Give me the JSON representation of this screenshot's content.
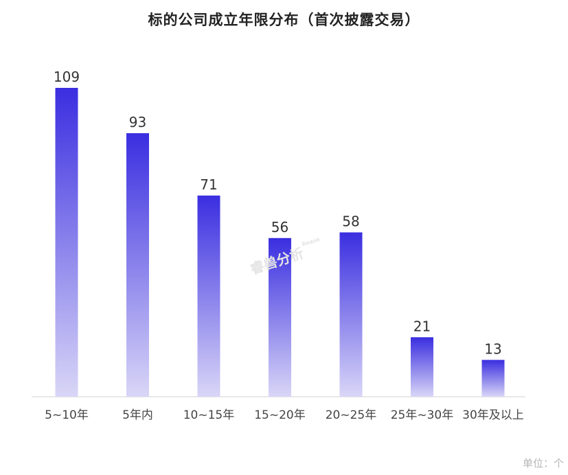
{
  "chart_data": {
    "type": "bar",
    "title": "标的公司成立年限分布（首次披露交易）",
    "unit": "单位：个",
    "categories": [
      "5~10年",
      "5年内",
      "10~15年",
      "15~20年",
      "20~25年",
      "25年~30年",
      "30年及以上"
    ],
    "values": [
      109,
      93,
      71,
      56,
      58,
      21,
      13
    ],
    "ylim": [
      0,
      109
    ],
    "grid": false,
    "legend": "none",
    "bar_color_top": "#3a2ee0",
    "bar_color_bottom": "#d9d6f7",
    "watermark": "睿兽分析",
    "watermark_sub": "Rease"
  }
}
